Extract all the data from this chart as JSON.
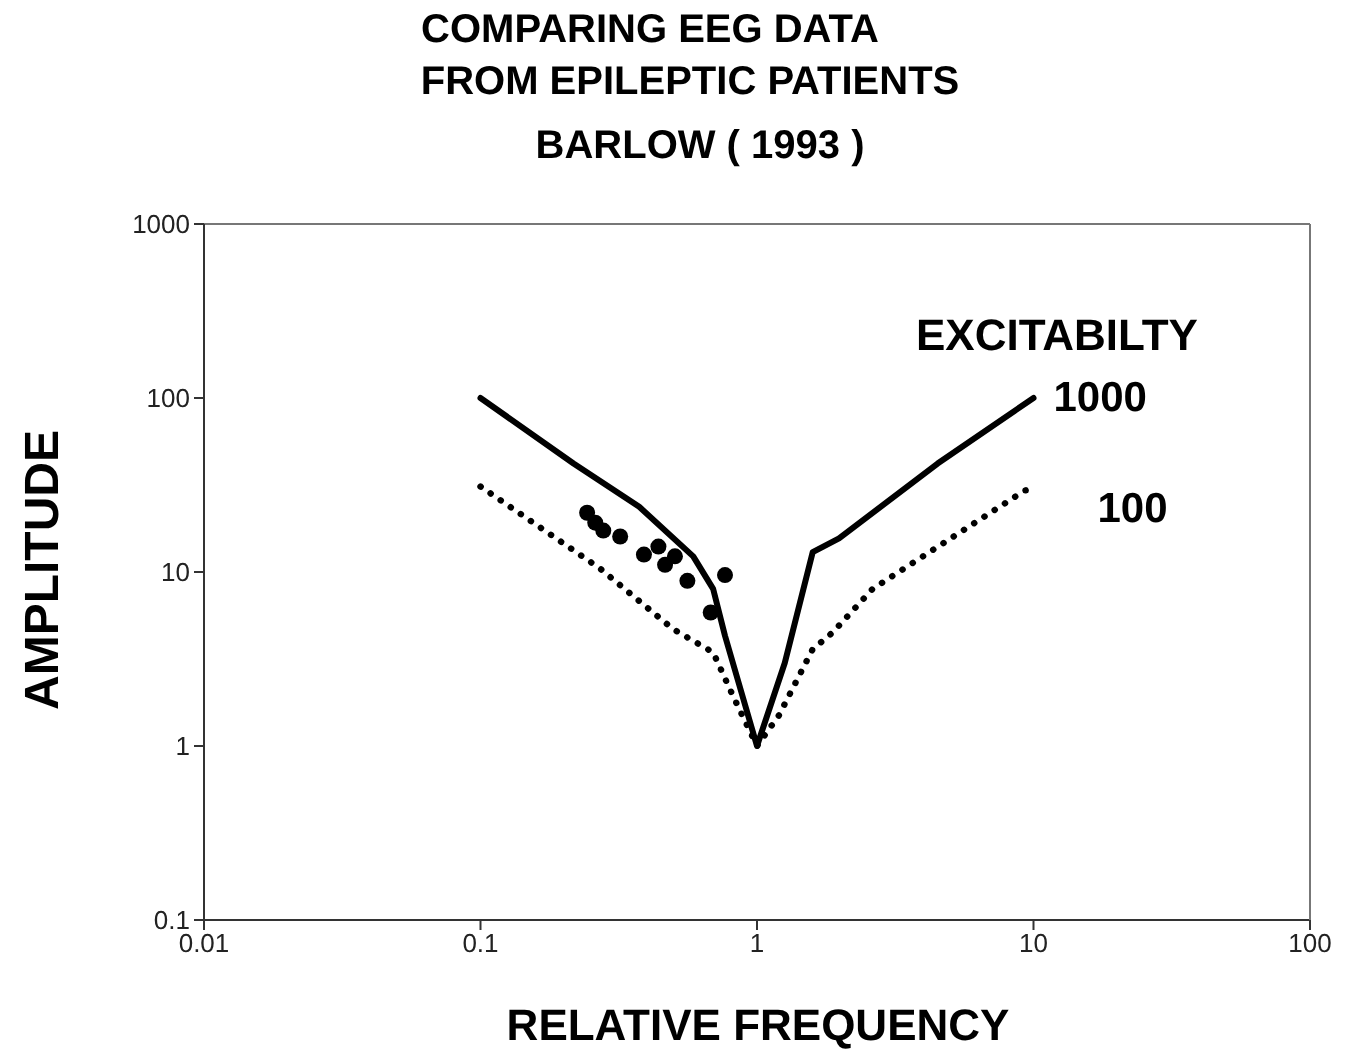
{
  "chart_data": {
    "type": "line",
    "title": "COMPARING EEG DATA\nFROM EPILEPTIC PATIENTS",
    "subtitle": "BARLOW ( 1993 )",
    "xlabel": "RELATIVE FREQUENCY",
    "ylabel": "AMPLITUDE",
    "legend_title": "EXCITABILTY",
    "log": "xy",
    "grid": false,
    "legend": false,
    "xlim": [
      0.01,
      100
    ],
    "xticks": [
      0.01,
      0.1,
      1,
      10,
      100
    ],
    "ylim": [
      0.1,
      1000
    ],
    "yticks": [
      0.1,
      1,
      10,
      100,
      1000
    ],
    "series": [
      {
        "name": "1000",
        "line_style": "solid",
        "color": "#000000",
        "x": [
          0.1,
          0.217,
          0.375,
          0.588,
          0.694,
          0.766,
          1,
          1.26,
          1.59,
          1.98,
          4.5,
          10
        ],
        "values": [
          100,
          42,
          23.7,
          12.3,
          8,
          4.3,
          1,
          3,
          13,
          15.6,
          42,
          100
        ]
      },
      {
        "name": "100",
        "line_style": "dotted",
        "color": "#000000",
        "x": [
          0.1,
          0.27,
          0.497,
          0.694,
          0.82,
          1,
          1.2,
          1.59,
          1.88,
          2.62,
          9.3,
          10
        ],
        "values": [
          31,
          10.5,
          4.7,
          3.45,
          1.93,
          1,
          1.5,
          3.6,
          4.5,
          8,
          29.4,
          30
        ]
      },
      {
        "type": "scatter",
        "marker": "circle",
        "color": "#000000",
        "x": [
          0.243,
          0.26,
          0.278,
          0.32,
          0.39,
          0.44,
          0.465,
          0.505,
          0.56,
          0.766,
          0.68
        ],
        "values": [
          21.9,
          19.2,
          17.3,
          16,
          12.6,
          14,
          11,
          12.3,
          8.9,
          9.6,
          5.85
        ]
      }
    ]
  }
}
